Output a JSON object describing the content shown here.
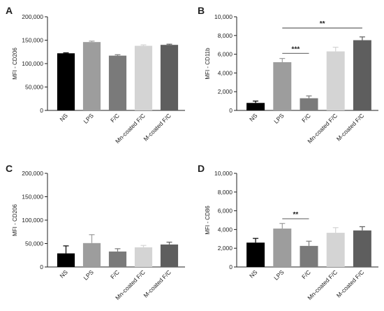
{
  "chart_data": [
    {
      "type": "bar",
      "panel": "A",
      "ylabel": "MFI - CD206",
      "ylim": [
        0,
        200000
      ],
      "yticks": [
        0,
        50000,
        100000,
        150000,
        200000
      ],
      "ytick_labels": [
        "0",
        "50,000",
        "100,000",
        "150,000",
        "200,000"
      ],
      "categories": [
        "NS",
        "LPS",
        "F/C",
        "Mn-coated F/C",
        "M-coated F/C"
      ],
      "values": [
        122000,
        146000,
        117000,
        138000,
        140000
      ],
      "errors": [
        1000,
        2000,
        2000,
        2000,
        1500
      ],
      "colors": [
        "#000000",
        "#9d9d9d",
        "#7a7a7a",
        "#d4d4d4",
        "#5e5e5e"
      ],
      "significance": []
    },
    {
      "type": "bar",
      "panel": "B",
      "ylabel": "MFI - CD11b",
      "ylim": [
        0,
        10000
      ],
      "yticks": [
        0,
        2000,
        4000,
        6000,
        8000,
        10000
      ],
      "ytick_labels": [
        "0",
        "2,000",
        "4,000",
        "6,000",
        "8,000",
        "10,000"
      ],
      "categories": [
        "NS",
        "LPS",
        "F/C",
        "Mn-coated F/C",
        "M-coated F/C"
      ],
      "values": [
        800,
        5150,
        1300,
        6300,
        7500
      ],
      "errors": [
        200,
        400,
        250,
        450,
        350
      ],
      "colors": [
        "#000000",
        "#9d9d9d",
        "#7a7a7a",
        "#d4d4d4",
        "#5e5e5e"
      ],
      "significance": [
        {
          "from": 1,
          "to": 2,
          "y": 6100,
          "label": "***"
        },
        {
          "from": 1,
          "to": 4,
          "y": 8800,
          "label": "**"
        }
      ]
    },
    {
      "type": "bar",
      "panel": "C",
      "ylabel": "MFI - CD206",
      "ylim": [
        0,
        200000
      ],
      "yticks": [
        0,
        50000,
        100000,
        150000,
        200000
      ],
      "ytick_labels": [
        "0",
        "50,000",
        "100,000",
        "150,000",
        "200,000"
      ],
      "categories": [
        "NS",
        "LPS",
        "F/C",
        "Mn-coated F/C",
        "M-coated F/C"
      ],
      "values": [
        29000,
        51000,
        33000,
        42000,
        48000
      ],
      "errors": [
        16000,
        18000,
        6000,
        4000,
        5000
      ],
      "colors": [
        "#000000",
        "#9d9d9d",
        "#7a7a7a",
        "#d4d4d4",
        "#5e5e5e"
      ],
      "significance": []
    },
    {
      "type": "bar",
      "panel": "D",
      "ylabel": "MFI - CD86",
      "ylim": [
        0,
        10000
      ],
      "yticks": [
        0,
        2000,
        4000,
        6000,
        8000,
        10000
      ],
      "ytick_labels": [
        "0",
        "2,000",
        "4,000",
        "6,000",
        "8,000",
        "10,000"
      ],
      "categories": [
        "NS",
        "LPS",
        "F/C",
        "Mn-coated F/C",
        "M-coated F/C"
      ],
      "values": [
        2600,
        4100,
        2250,
        3650,
        3900
      ],
      "errors": [
        450,
        550,
        500,
        550,
        400
      ],
      "colors": [
        "#000000",
        "#9d9d9d",
        "#7a7a7a",
        "#d4d4d4",
        "#5e5e5e"
      ],
      "significance": [
        {
          "from": 1,
          "to": 2,
          "y": 5150,
          "label": "**"
        }
      ]
    }
  ]
}
